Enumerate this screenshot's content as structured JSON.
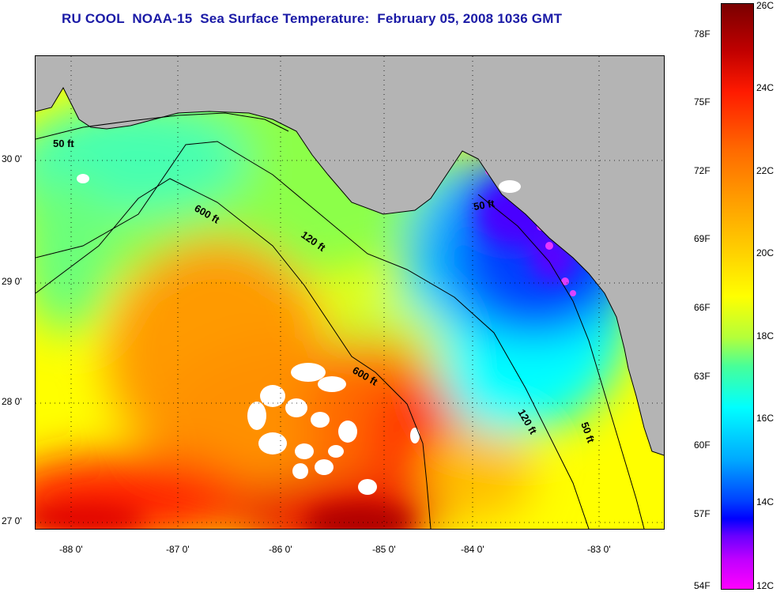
{
  "title": "RU COOL  NOAA-15  Sea Surface Temperature:  February 05, 2008 1036 GMT",
  "lat_labels": [
    "30 0'",
    "29 0'",
    "28 0'",
    "27 0'"
  ],
  "lon_labels": [
    "-88 0'",
    "-87 0'",
    "-86 0'",
    "-85 0'",
    "-84 0'",
    "-83 0'"
  ],
  "isobath_labels": [
    "50 ft",
    "600 ft",
    "120 ft",
    "50 ft",
    "600 ft",
    "120 ft",
    "50 ft"
  ],
  "colorbar": {
    "fahrenheit": [
      "78F",
      "75F",
      "72F",
      "69F",
      "66F",
      "63F",
      "60F",
      "57F",
      "54F"
    ],
    "celsius": [
      "26C",
      "24C",
      "22C",
      "20C",
      "18C",
      "16C",
      "14C",
      "12C"
    ]
  },
  "colors": {
    "title": "#1a1aa6",
    "land": "#b4b4b4",
    "cloud": "#ffffff"
  }
}
